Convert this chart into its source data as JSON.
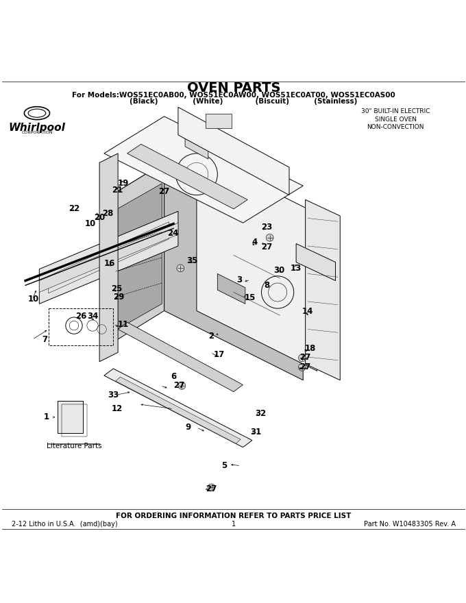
{
  "title": "OVEN PARTS",
  "subtitle": "For Models:WOS51EC0AB00, WOS51EC0AW00, WOS51EC0AT00, WOS51EC0AS00",
  "subtitle2": "        (Black)              (White)             (Biscuit)          (Stainless)",
  "top_right_text": "30\" BUILT-IN ELECTRIC\nSINGLE OVEN\nNON-CONVECTION",
  "bottom_center": "FOR ORDERING INFORMATION REFER TO PARTS PRICE LIST",
  "bottom_left": "2-12 Litho in U.S.A.  (amd)(bay)",
  "bottom_center_num": "1",
  "bottom_right": "Part No. W10483305 Rev. A",
  "literature_parts_label": "Literature Parts",
  "bg_color": "#ffffff",
  "line_color": "#000000",
  "figsize": [
    6.8,
    8.8
  ],
  "dpi": 100
}
